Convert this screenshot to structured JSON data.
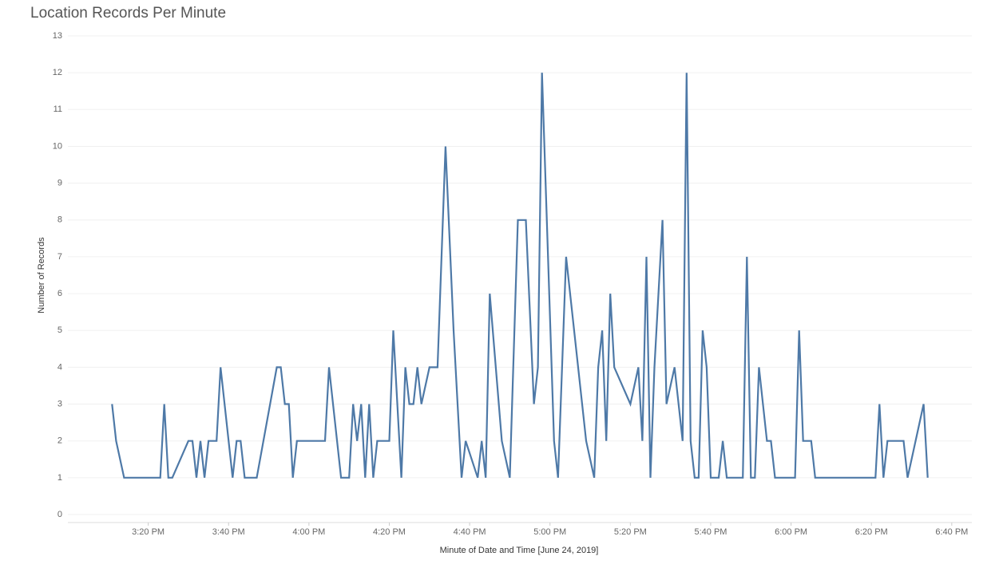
{
  "chart_data": {
    "type": "line",
    "title": "Location Records Per Minute",
    "x_label": "Minute of Date and Time [June 24, 2019]",
    "y_label": "Number of Records",
    "grid": true,
    "color": "#4e79a7",
    "xlim": [
      900,
      1125
    ],
    "xticks": [
      {
        "value": 920,
        "label": "3:20 PM"
      },
      {
        "value": 940,
        "label": "3:40 PM"
      },
      {
        "value": 960,
        "label": "4:00 PM"
      },
      {
        "value": 980,
        "label": "4:20 PM"
      },
      {
        "value": 1000,
        "label": "4:40 PM"
      },
      {
        "value": 1020,
        "label": "5:00 PM"
      },
      {
        "value": 1040,
        "label": "5:20 PM"
      },
      {
        "value": 1060,
        "label": "5:40 PM"
      },
      {
        "value": 1080,
        "label": "6:00 PM"
      },
      {
        "value": 1100,
        "label": "6:20 PM"
      },
      {
        "value": 1120,
        "label": "6:40 PM"
      }
    ],
    "ylim": [
      0,
      13
    ],
    "yticks": [
      0,
      1,
      2,
      3,
      4,
      5,
      6,
      7,
      8,
      9,
      10,
      11,
      12,
      13
    ],
    "x": [
      911,
      912,
      914,
      923,
      924,
      925,
      926,
      930,
      931,
      932,
      933,
      934,
      935,
      937,
      938,
      941,
      942,
      943,
      944,
      947,
      952,
      953,
      954,
      955,
      956,
      957,
      964,
      965,
      968,
      970,
      971,
      972,
      973,
      974,
      975,
      976,
      977,
      980,
      981,
      983,
      984,
      985,
      986,
      987,
      988,
      990,
      992,
      994,
      996,
      998,
      999,
      1002,
      1003,
      1004,
      1005,
      1008,
      1010,
      1012,
      1014,
      1016,
      1017,
      1018,
      1021,
      1022,
      1024,
      1029,
      1031,
      1032,
      1033,
      1034,
      1035,
      1036,
      1040,
      1042,
      1043,
      1044,
      1045,
      1046,
      1048,
      1049,
      1051,
      1053,
      1054,
      1055,
      1056,
      1057,
      1058,
      1059,
      1060,
      1062,
      1063,
      1064,
      1068,
      1069,
      1070,
      1071,
      1072,
      1074,
      1075,
      1076,
      1081,
      1082,
      1083,
      1085,
      1086,
      1101,
      1102,
      1103,
      1104,
      1108,
      1109,
      1113,
      1114
    ],
    "values": [
      3,
      2,
      1,
      1,
      3,
      1,
      1,
      2,
      2,
      1,
      2,
      1,
      2,
      2,
      4,
      1,
      2,
      2,
      1,
      1,
      4,
      4,
      3,
      3,
      1,
      2,
      2,
      4,
      1,
      1,
      3,
      2,
      3,
      1,
      3,
      1,
      2,
      2,
      5,
      1,
      4,
      3,
      3,
      4,
      3,
      4,
      4,
      10,
      5,
      1,
      2,
      1,
      2,
      1,
      6,
      2,
      1,
      8,
      8,
      3,
      4,
      12,
      2,
      1,
      7,
      2,
      1,
      4,
      5,
      2,
      6,
      4,
      3,
      4,
      2,
      7,
      1,
      4,
      8,
      3,
      4,
      2,
      12,
      2,
      1,
      1,
      5,
      4,
      1,
      1,
      2,
      1,
      1,
      7,
      1,
      1,
      4,
      2,
      2,
      1,
      1,
      5,
      2,
      2,
      1,
      1,
      3,
      1,
      2,
      2,
      1,
      3,
      1
    ]
  }
}
